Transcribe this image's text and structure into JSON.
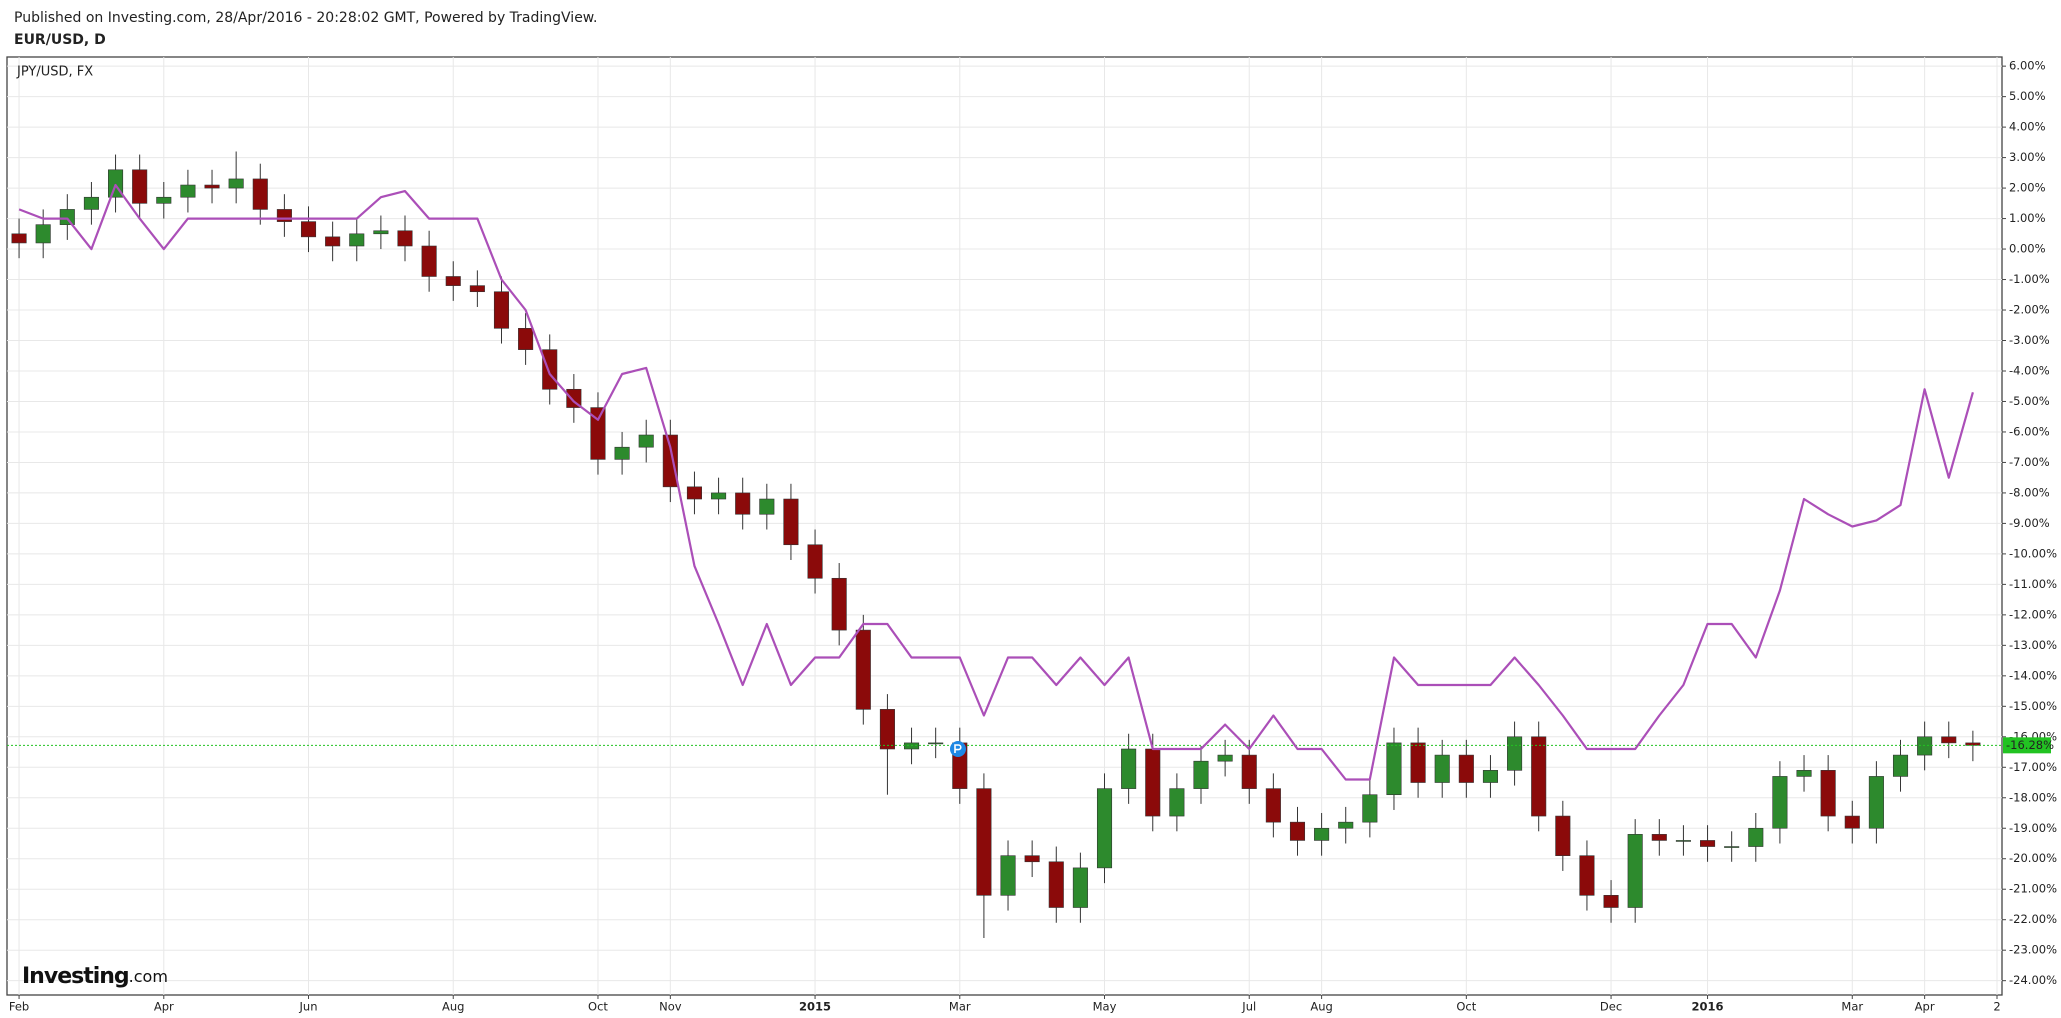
{
  "header": {
    "published": "Published on Investing.com, 28/Apr/2016 - 20:28:02 GMT, Powered by TradingView."
  },
  "branding": {
    "name": "Investing",
    "suffix": ".com"
  },
  "chart_data": {
    "type": "candlestick",
    "categories": [
      "Feb",
      null,
      null,
      null,
      null,
      null,
      "Apr",
      null,
      null,
      null,
      null,
      null,
      "Jun",
      null,
      null,
      null,
      null,
      null,
      "Aug",
      null,
      null,
      null,
      null,
      null,
      "Oct",
      null,
      null,
      "Nov",
      null,
      null,
      null,
      null,
      null,
      "2015",
      null,
      null,
      null,
      null,
      null,
      "Mar",
      null,
      null,
      null,
      null,
      null,
      "May",
      null,
      null,
      null,
      null,
      null,
      "Jul",
      null,
      null,
      "Aug",
      null,
      null,
      null,
      null,
      null,
      "Oct",
      null,
      null,
      null,
      null,
      null,
      "Dec",
      null,
      null,
      null,
      "2016",
      null,
      null,
      null,
      null,
      null,
      "Mar",
      null,
      null,
      "Apr",
      null,
      null,
      "2"
    ],
    "series": [
      {
        "name": "EUR/USD, D",
        "up_color": "#2d8a2d",
        "down_color": "#8b0a0a",
        "open": [
          0.5,
          0.2,
          0.8,
          1.3,
          1.7,
          2.6,
          1.5,
          1.7,
          2.1,
          2.0,
          2.3,
          1.3,
          0.9,
          0.4,
          0.1,
          0.5,
          0.6,
          0.1,
          -0.9,
          -1.2,
          -1.4,
          -2.6,
          -3.3,
          -4.6,
          -5.2,
          -6.9,
          -6.5,
          -6.1,
          -7.8,
          -8.2,
          -8.0,
          -8.7,
          -8.2,
          -9.7,
          -10.8,
          -12.5,
          -15.1,
          -16.4,
          -16.2,
          -16.2,
          -17.7,
          -21.2,
          -19.9,
          -20.1,
          -21.6,
          -20.3,
          -17.7,
          -16.4,
          -18.6,
          -17.7,
          -16.8,
          -16.6,
          -17.7,
          -18.8,
          -19.4,
          -19.0,
          -18.8,
          -17.9,
          -16.2,
          -17.5,
          -16.6,
          -17.5,
          -17.1,
          -16.0,
          -18.6,
          -19.9,
          -21.2,
          -21.6,
          -19.2,
          -19.4,
          -19.4,
          -19.6,
          -19.6,
          -19.0,
          -17.3,
          -17.1,
          -18.6,
          -19.0,
          -17.3,
          -16.6,
          -16.0,
          -16.2,
          null
        ],
        "high": [
          1.0,
          1.3,
          1.8,
          2.2,
          3.1,
          3.1,
          2.2,
          2.6,
          2.6,
          3.2,
          2.8,
          1.8,
          1.4,
          0.9,
          1.0,
          1.1,
          1.1,
          0.6,
          -0.4,
          -0.7,
          -0.9,
          -2.1,
          -2.8,
          -4.1,
          -4.7,
          -6.0,
          -5.6,
          -5.6,
          -7.3,
          -7.5,
          -7.5,
          -7.7,
          -7.7,
          -9.2,
          -10.3,
          -12.0,
          -14.6,
          -15.7,
          -15.7,
          -15.7,
          -17.2,
          -19.4,
          -19.4,
          -19.6,
          -19.8,
          -17.2,
          -15.9,
          -15.9,
          -17.2,
          -16.3,
          -16.1,
          -16.1,
          -17.2,
          -18.3,
          -18.5,
          -18.3,
          -17.4,
          -15.7,
          -15.7,
          -16.1,
          -16.1,
          -16.6,
          -15.5,
          -15.5,
          -18.1,
          -19.4,
          -20.7,
          -18.7,
          -18.7,
          -18.9,
          -18.9,
          -19.1,
          -18.5,
          -16.8,
          -16.6,
          -16.6,
          -18.1,
          -16.8,
          -16.1,
          -15.5,
          -15.5,
          -15.8,
          null
        ],
        "low": [
          -0.3,
          -0.3,
          0.3,
          0.8,
          1.2,
          1.0,
          1.0,
          1.2,
          1.5,
          1.5,
          0.8,
          0.4,
          -0.1,
          -0.4,
          -0.4,
          0.0,
          -0.4,
          -1.4,
          -1.7,
          -1.9,
          -3.1,
          -3.8,
          -5.1,
          -5.7,
          -7.4,
          -7.4,
          -7.0,
          -8.3,
          -8.7,
          -8.7,
          -9.2,
          -9.2,
          -10.2,
          -11.3,
          -13.0,
          -15.6,
          -17.9,
          -16.9,
          -16.7,
          -18.2,
          -22.6,
          -21.7,
          -20.6,
          -22.1,
          -22.1,
          -20.8,
          -18.2,
          -19.1,
          -19.1,
          -18.2,
          -17.3,
          -18.2,
          -19.3,
          -19.9,
          -19.9,
          -19.5,
          -19.3,
          -18.4,
          -18.0,
          -18.0,
          -18.0,
          -18.0,
          -17.6,
          -19.1,
          -20.4,
          -21.7,
          -22.1,
          -22.1,
          -19.9,
          -19.9,
          -20.1,
          -20.1,
          -20.1,
          -19.5,
          -17.8,
          -19.1,
          -19.5,
          -19.5,
          -17.8,
          -17.1,
          -16.7,
          -16.8,
          null
        ],
        "close": [
          0.2,
          0.8,
          1.3,
          1.7,
          2.6,
          1.5,
          1.7,
          2.1,
          2.0,
          2.3,
          1.3,
          0.9,
          0.4,
          0.1,
          0.5,
          0.6,
          0.1,
          -0.9,
          -1.2,
          -1.4,
          -2.6,
          -3.3,
          -4.6,
          -5.2,
          -6.9,
          -6.5,
          -6.1,
          -7.8,
          -8.2,
          -8.0,
          -8.7,
          -8.2,
          -9.7,
          -10.8,
          -12.5,
          -15.1,
          -16.4,
          -16.2,
          -16.2,
          -17.7,
          -21.2,
          -19.9,
          -20.1,
          -21.6,
          -20.3,
          -17.7,
          -16.4,
          -18.6,
          -17.7,
          -16.8,
          -16.6,
          -17.7,
          -18.8,
          -19.4,
          -19.0,
          -18.8,
          -17.9,
          -16.2,
          -17.5,
          -16.6,
          -17.5,
          -17.1,
          -16.0,
          -18.6,
          -19.9,
          -21.2,
          -21.6,
          -19.2,
          -19.4,
          -19.4,
          -19.6,
          -19.6,
          -19.0,
          -17.3,
          -17.1,
          -18.6,
          -19.0,
          -17.3,
          -16.6,
          -16.0,
          -16.2,
          -16.28,
          null
        ],
        "last_label": "-16.28%",
        "last_color": "#22c322"
      },
      {
        "name": "JPY/USD, FX",
        "type": "line",
        "color": "#ab4fb8",
        "values": [
          1.3,
          1.0,
          1.0,
          0.0,
          2.1,
          1.0,
          0.0,
          1.0,
          1.0,
          1.0,
          1.0,
          1.0,
          1.0,
          1.0,
          1.0,
          1.7,
          1.9,
          1.0,
          1.0,
          1.0,
          -1.0,
          -2.0,
          -4.1,
          -5.0,
          -5.6,
          -4.1,
          -3.9,
          -6.5,
          -10.4,
          -12.3,
          -14.3,
          -12.3,
          -14.3,
          -13.4,
          -13.4,
          -12.3,
          -12.3,
          -13.4,
          -13.4,
          -13.4,
          -15.3,
          -13.4,
          -13.4,
          -14.3,
          -13.4,
          -14.3,
          -13.4,
          -16.4,
          -16.4,
          -16.4,
          -15.6,
          -16.4,
          -15.3,
          -16.4,
          -16.4,
          -17.4,
          -17.4,
          -13.4,
          -14.3,
          -14.3,
          -14.3,
          -14.3,
          -13.4,
          -14.3,
          -15.3,
          -16.4,
          -16.4,
          -16.4,
          -15.3,
          -14.3,
          -12.3,
          -12.3,
          -13.4,
          -11.2,
          -8.2,
          -8.7,
          -9.1,
          -8.9,
          -8.4,
          -4.6,
          -7.5,
          -4.7,
          null
        ]
      }
    ],
    "ylim": [
      -24.47,
      6.3
    ],
    "yticks": [
      {
        "value": 6,
        "label": "6.00%"
      },
      {
        "value": 5,
        "label": "5.00%"
      },
      {
        "value": 4,
        "label": "4.00%"
      },
      {
        "value": 3,
        "label": "3.00%"
      },
      {
        "value": 2,
        "label": "2.00%"
      },
      {
        "value": 1,
        "label": "1.00%"
      },
      {
        "value": 0,
        "label": "0.00%"
      },
      {
        "value": -1,
        "label": "-1.00%"
      },
      {
        "value": -2,
        "label": "-2.00%"
      },
      {
        "value": -3,
        "label": "-3.00%"
      },
      {
        "value": -4,
        "label": "-4.00%"
      },
      {
        "value": -5,
        "label": "-5.00%"
      },
      {
        "value": -6,
        "label": "-6.00%"
      },
      {
        "value": -7,
        "label": "-7.00%"
      },
      {
        "value": -8,
        "label": "-8.00%"
      },
      {
        "value": -9,
        "label": "-9.00%"
      },
      {
        "value": -10,
        "label": "-10.00%"
      },
      {
        "value": -11,
        "label": "-11.00%"
      },
      {
        "value": -12,
        "label": "-12.00%"
      },
      {
        "value": -13,
        "label": "-13.00%"
      },
      {
        "value": -14,
        "label": "-14.00%"
      },
      {
        "value": -15,
        "label": "-15.00%"
      },
      {
        "value": -16,
        "label": "-16.00%"
      },
      {
        "value": -17,
        "label": "-17.00%"
      },
      {
        "value": -18,
        "label": "-18.00%"
      },
      {
        "value": -19,
        "label": "-19.00%"
      },
      {
        "value": -20,
        "label": "-20.00%"
      },
      {
        "value": -21,
        "label": "-21.00%"
      },
      {
        "value": -22,
        "label": "-22.00%"
      },
      {
        "value": -23,
        "label": "-23.00%"
      },
      {
        "value": -24,
        "label": "-24.00%"
      }
    ],
    "grid": true
  }
}
